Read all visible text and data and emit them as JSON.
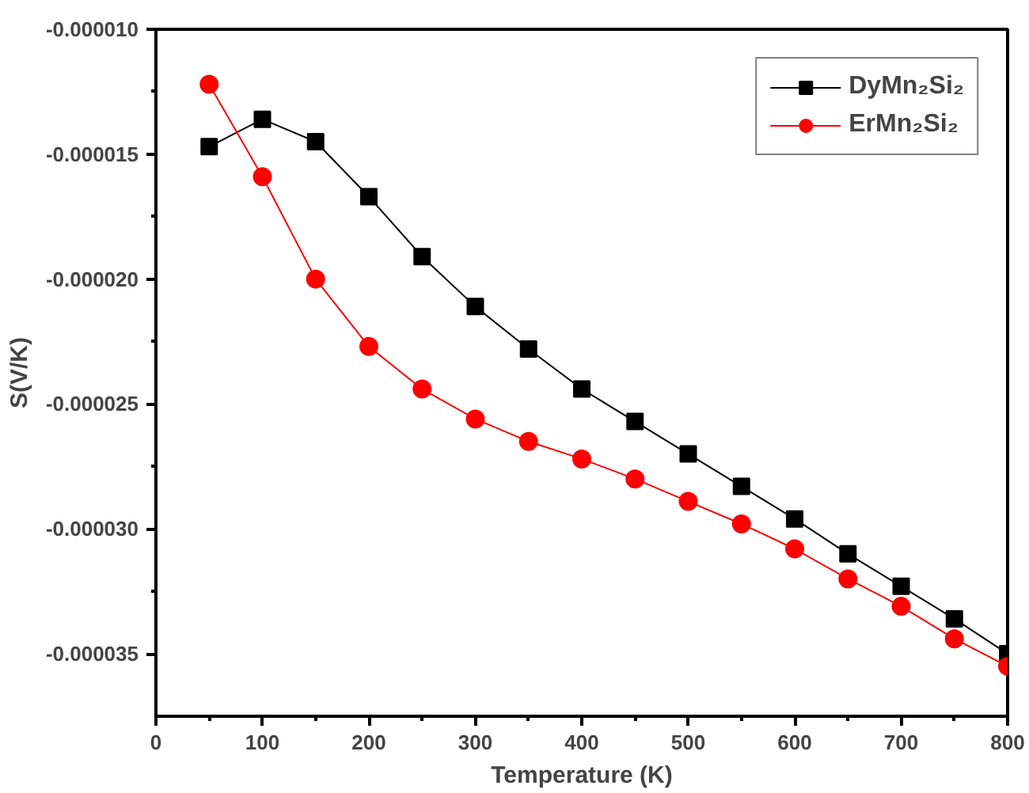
{
  "chart_data": {
    "type": "line",
    "xlabel": "Temperature (K)",
    "ylabel": "S(V/K)",
    "x": [
      50,
      100,
      150,
      200,
      250,
      300,
      350,
      400,
      450,
      500,
      550,
      600,
      650,
      700,
      750,
      800
    ],
    "series": [
      {
        "name": "DyMn₂Si₂",
        "color": "#000000",
        "marker": "square",
        "values": [
          -1.47e-05,
          -1.36e-05,
          -1.45e-05,
          -1.67e-05,
          -1.91e-05,
          -2.11e-05,
          -2.28e-05,
          -2.44e-05,
          -2.57e-05,
          -2.7e-05,
          -2.83e-05,
          -2.96e-05,
          -3.1e-05,
          -3.23e-05,
          -3.36e-05,
          -3.5e-05
        ]
      },
      {
        "name": "ErMn₂Si₂",
        "color": "#ff0000",
        "marker": "circle",
        "values": [
          -1.22e-05,
          -1.59e-05,
          -2e-05,
          -2.27e-05,
          -2.44e-05,
          -2.56e-05,
          -2.65e-05,
          -2.72e-05,
          -2.8e-05,
          -2.89e-05,
          -2.98e-05,
          -3.08e-05,
          -3.2e-05,
          -3.31e-05,
          -3.44e-05,
          -3.55e-05
        ]
      }
    ],
    "xlim": [
      0,
      800
    ],
    "ylim": [
      -3.75e-05,
      -1e-05
    ],
    "xticks": [
      0,
      100,
      200,
      300,
      400,
      500,
      600,
      700,
      800
    ],
    "yticks": [
      {
        "value": -1e-05,
        "label": "-0.000010"
      },
      {
        "value": -1.5e-05,
        "label": "-0.000015"
      },
      {
        "value": -2e-05,
        "label": "-0.000020"
      },
      {
        "value": -2.5e-05,
        "label": "-0.000025"
      },
      {
        "value": -3e-05,
        "label": "-0.000030"
      },
      {
        "value": -3.5e-05,
        "label": "-0.000035"
      }
    ],
    "grid": false,
    "legend": "top right",
    "line_style": "solid"
  }
}
